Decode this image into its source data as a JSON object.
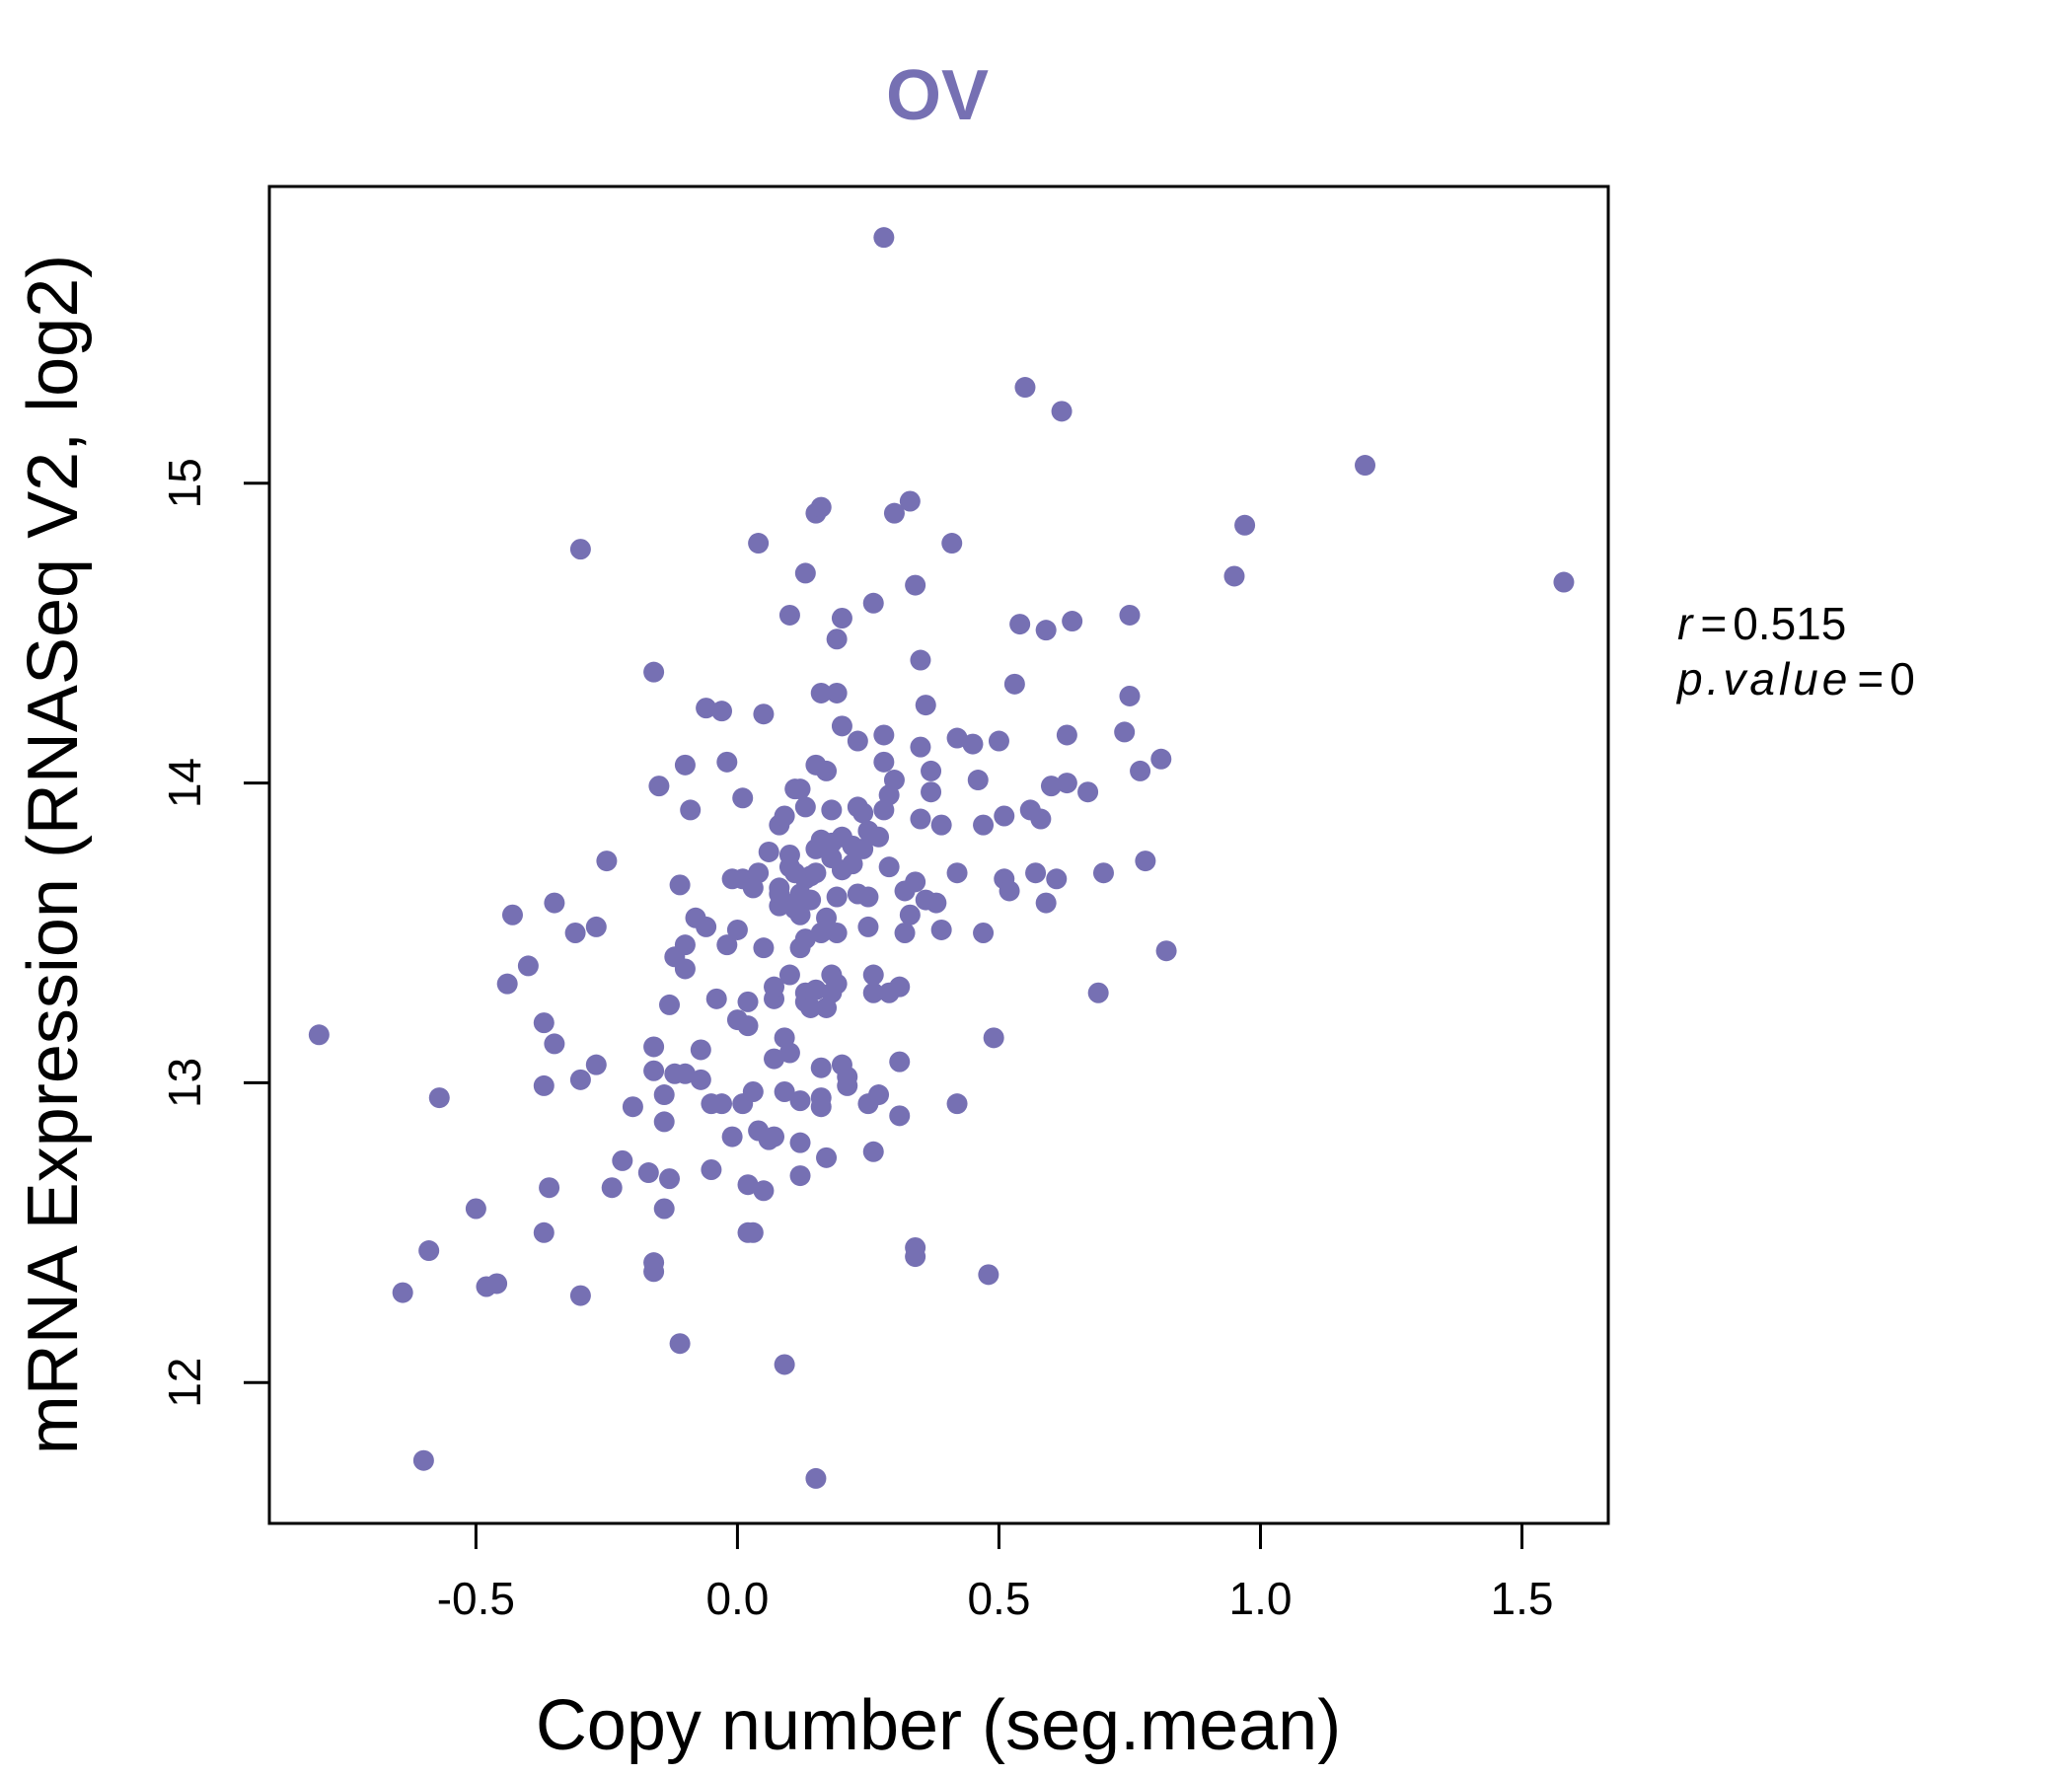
{
  "chart_data": {
    "type": "scatter",
    "title": "OV",
    "xlabel": "Copy number (seg.mean)",
    "ylabel": "mRNA Expression (RNASeq V2, log2)",
    "xlim": [
      -0.895,
      1.665
    ],
    "ylim": [
      11.53,
      15.99
    ],
    "xticks": [
      -0.5,
      0.0,
      0.5,
      1.0,
      1.5
    ],
    "xtick_labels": [
      "-0.5",
      "0.0",
      "0.5",
      "1.0",
      "1.5"
    ],
    "yticks": [
      12,
      13,
      14,
      15
    ],
    "ytick_labels": [
      "12",
      "13",
      "14",
      "15"
    ],
    "grid": false,
    "series": [
      {
        "name": "OV",
        "color": "#7670B3",
        "points": [
          [
            -0.8,
            13.16
          ],
          [
            -0.64,
            12.3
          ],
          [
            -0.6,
            11.74
          ],
          [
            -0.59,
            12.44
          ],
          [
            -0.57,
            12.95
          ],
          [
            -0.5,
            12.58
          ],
          [
            -0.48,
            12.32
          ],
          [
            -0.46,
            12.33
          ],
          [
            -0.44,
            13.33
          ],
          [
            -0.43,
            13.56
          ],
          [
            -0.4,
            13.39
          ],
          [
            -0.37,
            12.5
          ],
          [
            -0.37,
            13.2
          ],
          [
            -0.37,
            12.99
          ],
          [
            -0.36,
            12.65
          ],
          [
            -0.35,
            13.13
          ],
          [
            -0.35,
            13.6
          ],
          [
            -0.3,
            14.78
          ],
          [
            -0.31,
            13.5
          ],
          [
            -0.3,
            13.01
          ],
          [
            -0.3,
            12.29
          ],
          [
            -0.27,
            13.52
          ],
          [
            -0.27,
            13.06
          ],
          [
            -0.25,
            13.74
          ],
          [
            -0.24,
            12.65
          ],
          [
            -0.22,
            12.74
          ],
          [
            -0.2,
            12.92
          ],
          [
            -0.17,
            12.7
          ],
          [
            -0.16,
            14.37
          ],
          [
            -0.16,
            13.12
          ],
          [
            -0.16,
            13.04
          ],
          [
            -0.16,
            12.4
          ],
          [
            -0.16,
            12.37
          ],
          [
            -0.15,
            13.99
          ],
          [
            -0.14,
            12.96
          ],
          [
            -0.14,
            12.87
          ],
          [
            -0.14,
            12.58
          ],
          [
            -0.13,
            12.68
          ],
          [
            -0.13,
            13.26
          ],
          [
            -0.12,
            13.42
          ],
          [
            -0.12,
            13.03
          ],
          [
            -0.11,
            13.66
          ],
          [
            -0.1,
            13.46
          ],
          [
            -0.1,
            14.06
          ],
          [
            -0.1,
            13.38
          ],
          [
            -0.09,
            13.91
          ],
          [
            -0.08,
            13.55
          ],
          [
            -0.07,
            13.11
          ],
          [
            -0.06,
            13.52
          ],
          [
            -0.07,
            13.01
          ],
          [
            -0.11,
            12.13
          ],
          [
            -0.1,
            13.03
          ],
          [
            -0.05,
            12.93
          ],
          [
            -0.05,
            12.71
          ],
          [
            -0.04,
            13.28
          ],
          [
            -0.03,
            12.93
          ],
          [
            -0.06,
            14.25
          ],
          [
            -0.03,
            14.24
          ],
          [
            -0.02,
            13.46
          ],
          [
            -0.02,
            14.07
          ],
          [
            -0.01,
            13.68
          ],
          [
            -0.01,
            12.82
          ],
          [
            0.0,
            13.51
          ],
          [
            0.0,
            13.21
          ],
          [
            0.01,
            13.68
          ],
          [
            0.01,
            13.95
          ],
          [
            0.02,
            13.27
          ],
          [
            0.02,
            13.19
          ],
          [
            0.01,
            12.93
          ],
          [
            0.02,
            12.5
          ],
          [
            0.02,
            12.66
          ],
          [
            0.03,
            12.5
          ],
          [
            0.03,
            12.97
          ],
          [
            0.03,
            13.65
          ],
          [
            0.04,
            13.7
          ],
          [
            0.04,
            12.84
          ],
          [
            0.04,
            14.8
          ],
          [
            0.05,
            14.23
          ],
          [
            0.05,
            13.45
          ],
          [
            0.05,
            12.64
          ],
          [
            0.06,
            12.81
          ],
          [
            0.06,
            13.77
          ],
          [
            0.07,
            13.28
          ],
          [
            0.07,
            12.82
          ],
          [
            0.07,
            13.08
          ],
          [
            0.07,
            13.32
          ],
          [
            0.08,
            13.86
          ],
          [
            0.08,
            13.65
          ],
          [
            0.08,
            13.59
          ],
          [
            0.08,
            13.63
          ],
          [
            0.09,
            13.89
          ],
          [
            0.09,
            13.6
          ],
          [
            0.09,
            13.15
          ],
          [
            0.09,
            12.97
          ],
          [
            0.09,
            12.06
          ],
          [
            0.1,
            13.76
          ],
          [
            0.1,
            13.1
          ],
          [
            0.1,
            13.36
          ],
          [
            0.1,
            14.56
          ],
          [
            0.1,
            13.72
          ],
          [
            0.11,
            13.98
          ],
          [
            0.11,
            13.7
          ],
          [
            0.11,
            13.58
          ],
          [
            0.12,
            13.56
          ],
          [
            0.12,
            13.63
          ],
          [
            0.12,
            13.6
          ],
          [
            0.12,
            13.45
          ],
          [
            0.12,
            12.94
          ],
          [
            0.12,
            12.8
          ],
          [
            0.12,
            12.69
          ],
          [
            0.12,
            13.98
          ],
          [
            0.13,
            14.7
          ],
          [
            0.13,
            13.92
          ],
          [
            0.13,
            13.68
          ],
          [
            0.13,
            13.3
          ],
          [
            0.13,
            13.27
          ],
          [
            0.13,
            13.48
          ],
          [
            0.14,
            13.69
          ],
          [
            0.14,
            13.25
          ],
          [
            0.14,
            13.61
          ],
          [
            0.15,
            13.7
          ],
          [
            0.15,
            13.78
          ],
          [
            0.15,
            14.06
          ],
          [
            0.15,
            13.31
          ],
          [
            0.15,
            14.9
          ],
          [
            0.15,
            11.68
          ],
          [
            0.16,
            14.92
          ],
          [
            0.16,
            14.3
          ],
          [
            0.16,
            13.81
          ],
          [
            0.16,
            13.5
          ],
          [
            0.16,
            13.05
          ],
          [
            0.16,
            12.95
          ],
          [
            0.16,
            12.92
          ],
          [
            0.17,
            12.75
          ],
          [
            0.17,
            13.25
          ],
          [
            0.17,
            13.55
          ],
          [
            0.17,
            14.04
          ],
          [
            0.18,
            13.91
          ],
          [
            0.18,
            13.8
          ],
          [
            0.18,
            13.75
          ],
          [
            0.18,
            13.36
          ],
          [
            0.18,
            13.3
          ],
          [
            0.19,
            14.48
          ],
          [
            0.19,
            14.3
          ],
          [
            0.19,
            13.33
          ],
          [
            0.19,
            13.5
          ],
          [
            0.19,
            13.62
          ],
          [
            0.2,
            14.55
          ],
          [
            0.2,
            14.19
          ],
          [
            0.2,
            13.82
          ],
          [
            0.2,
            13.71
          ],
          [
            0.2,
            13.06
          ],
          [
            0.21,
            13.02
          ],
          [
            0.21,
            12.99
          ],
          [
            0.22,
            13.79
          ],
          [
            0.22,
            13.73
          ],
          [
            0.23,
            14.14
          ],
          [
            0.23,
            13.63
          ],
          [
            0.23,
            13.92
          ],
          [
            0.24,
            13.9
          ],
          [
            0.24,
            13.78
          ],
          [
            0.25,
            13.84
          ],
          [
            0.25,
            13.62
          ],
          [
            0.25,
            13.52
          ],
          [
            0.25,
            12.93
          ],
          [
            0.26,
            14.6
          ],
          [
            0.26,
            13.36
          ],
          [
            0.26,
            13.3
          ],
          [
            0.26,
            12.77
          ],
          [
            0.27,
            13.82
          ],
          [
            0.27,
            12.96
          ],
          [
            0.28,
            13.91
          ],
          [
            0.28,
            14.07
          ],
          [
            0.28,
            14.16
          ],
          [
            0.28,
            15.82
          ],
          [
            0.29,
            13.96
          ],
          [
            0.29,
            13.3
          ],
          [
            0.29,
            13.72
          ],
          [
            0.3,
            14.01
          ],
          [
            0.3,
            14.9
          ],
          [
            0.31,
            13.32
          ],
          [
            0.31,
            13.07
          ],
          [
            0.31,
            12.89
          ],
          [
            0.32,
            13.5
          ],
          [
            0.32,
            13.64
          ],
          [
            0.33,
            14.94
          ],
          [
            0.33,
            13.56
          ],
          [
            0.34,
            14.66
          ],
          [
            0.34,
            13.67
          ],
          [
            0.34,
            12.45
          ],
          [
            0.34,
            12.42
          ],
          [
            0.35,
            14.12
          ],
          [
            0.35,
            13.88
          ],
          [
            0.35,
            14.41
          ],
          [
            0.36,
            14.26
          ],
          [
            0.36,
            13.61
          ],
          [
            0.37,
            13.97
          ],
          [
            0.37,
            14.04
          ],
          [
            0.38,
            13.6
          ],
          [
            0.39,
            13.86
          ],
          [
            0.39,
            13.51
          ],
          [
            0.41,
            14.8
          ],
          [
            0.42,
            13.7
          ],
          [
            0.42,
            14.15
          ],
          [
            0.42,
            12.93
          ],
          [
            0.45,
            14.13
          ],
          [
            0.46,
            14.01
          ],
          [
            0.47,
            13.86
          ],
          [
            0.47,
            13.5
          ],
          [
            0.48,
            12.36
          ],
          [
            0.49,
            13.15
          ],
          [
            0.5,
            14.14
          ],
          [
            0.51,
            13.89
          ],
          [
            0.51,
            13.68
          ],
          [
            0.52,
            13.64
          ],
          [
            0.53,
            14.33
          ],
          [
            0.54,
            14.53
          ],
          [
            0.55,
            15.32
          ],
          [
            0.56,
            13.91
          ],
          [
            0.57,
            13.7
          ],
          [
            0.58,
            13.88
          ],
          [
            0.59,
            13.6
          ],
          [
            0.59,
            14.51
          ],
          [
            0.6,
            13.99
          ],
          [
            0.61,
            13.68
          ],
          [
            0.62,
            15.24
          ],
          [
            0.63,
            14.16
          ],
          [
            0.63,
            14.0
          ],
          [
            0.64,
            14.54
          ],
          [
            0.67,
            13.97
          ],
          [
            0.69,
            13.3
          ],
          [
            0.7,
            13.7
          ],
          [
            0.74,
            14.17
          ],
          [
            0.75,
            14.56
          ],
          [
            0.75,
            14.29
          ],
          [
            0.77,
            14.04
          ],
          [
            0.78,
            13.74
          ],
          [
            0.81,
            14.08
          ],
          [
            0.82,
            13.44
          ],
          [
            0.95,
            14.69
          ],
          [
            0.97,
            14.86
          ],
          [
            1.2,
            15.06
          ],
          [
            1.58,
            14.67
          ]
        ]
      }
    ],
    "annotations": {
      "r_symbol": "r",
      "r_value": "0.515",
      "p_symbol": "p.value",
      "p_value": "0"
    }
  }
}
